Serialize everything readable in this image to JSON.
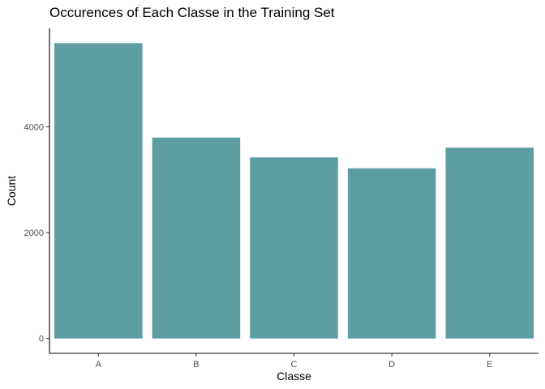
{
  "chart_data": {
    "type": "bar",
    "title": "Occurences of Each Classe in the Training Set",
    "xlabel": "Classe",
    "ylabel": "Count",
    "categories": [
      "A",
      "B",
      "C",
      "D",
      "E"
    ],
    "values": [
      5580,
      3797,
      3422,
      3216,
      3607
    ],
    "ylim": [
      -280,
      5860
    ],
    "yticks": [
      0,
      2000,
      4000
    ],
    "ytick_labels": [
      "0",
      "2000",
      "4000"
    ],
    "grid": false,
    "legend": "none",
    "colors": {
      "bar": "#5f9ea0",
      "axis": "#000000",
      "tick_label": "#4d4d4d",
      "text": "#000000"
    }
  }
}
